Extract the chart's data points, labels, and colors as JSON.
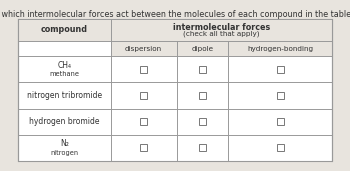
{
  "title": "Decide which intermolecular forces act between the molecules of each compound in the table below.",
  "header_col": "compound",
  "header_forces_line1": "intermolecular forces",
  "header_forces_line2": "(check all that apply)",
  "col_headers": [
    "dispersion",
    "dipole",
    "hydrogen-bonding"
  ],
  "rows": [
    {
      "compound_main": "CH₄",
      "compound_sub": "methane"
    },
    {
      "compound_main": "nitrogen tribromide",
      "compound_sub": ""
    },
    {
      "compound_main": "hydrogen bromide",
      "compound_sub": ""
    },
    {
      "compound_main": "N₂",
      "compound_sub": "nitrogen"
    }
  ],
  "fig_bg": "#e8e4de",
  "table_bg": "#ffffff",
  "header_bg": "#e8e4de",
  "border_color": "#999999",
  "text_color": "#333333",
  "title_fontsize": 5.8,
  "header_fontsize": 5.8,
  "subheader_fontsize": 5.2,
  "cell_fontsize": 5.5,
  "small_fontsize": 4.8
}
